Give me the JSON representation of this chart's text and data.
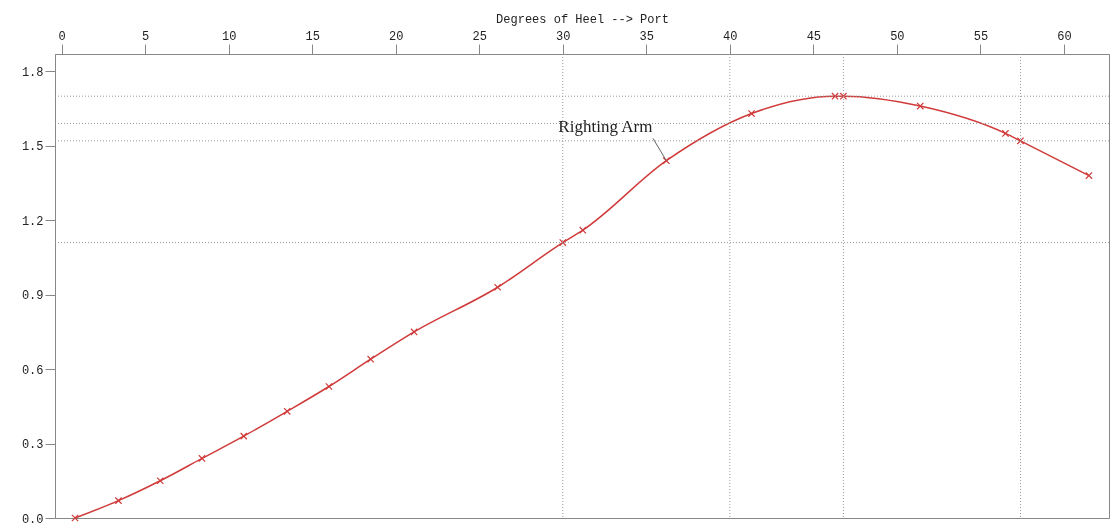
{
  "chart_data": {
    "type": "line",
    "xlabel": "Degrees of Heel --> Port",
    "x": [
      0.8,
      3.4,
      5.9,
      8.4,
      10.9,
      13.5,
      16.0,
      18.5,
      21.1,
      26.1,
      30.0,
      31.2,
      36.2,
      41.3,
      46.3,
      46.8,
      51.4,
      56.5,
      57.4,
      61.5
    ],
    "series": [
      {
        "color": "#d03a3a",
        "values": [
          0,
          0.07,
          0.15,
          0.24,
          0.33,
          0.43,
          0.53,
          0.64,
          0.75,
          0.93,
          1.11,
          1.16,
          1.44,
          1.63,
          1.7,
          1.7,
          1.66,
          1.55,
          1.52,
          1.38
        ]
      }
    ],
    "xlim": [
      -0.4,
      62.7
    ],
    "xticks": [
      0,
      5,
      10,
      15,
      20,
      25,
      30,
      35,
      40,
      45,
      50,
      55,
      60
    ],
    "ylim": [
      0,
      1.87
    ],
    "yticks": [
      {
        "value": 0,
        "label": "0.0"
      },
      0.3,
      0.6,
      0.9,
      1.2,
      1.5,
      1.8
    ],
    "marker": "cross",
    "grid": false,
    "ref_lines": [
      {
        "axis": "y",
        "value": 1.7
      },
      {
        "axis": "y",
        "value": 1.59
      },
      {
        "axis": "y",
        "value": 1.52
      },
      {
        "axis": "y",
        "value": 1.11
      },
      {
        "axis": "x",
        "value": 30
      },
      {
        "axis": "x",
        "value": 40
      },
      {
        "axis": "x",
        "value": 46.8
      },
      {
        "axis": "x",
        "value": 57.4
      }
    ],
    "annotations": [
      {
        "text": "Righting Arm",
        "x": 36.2,
        "y": 1.44
      }
    ]
  }
}
